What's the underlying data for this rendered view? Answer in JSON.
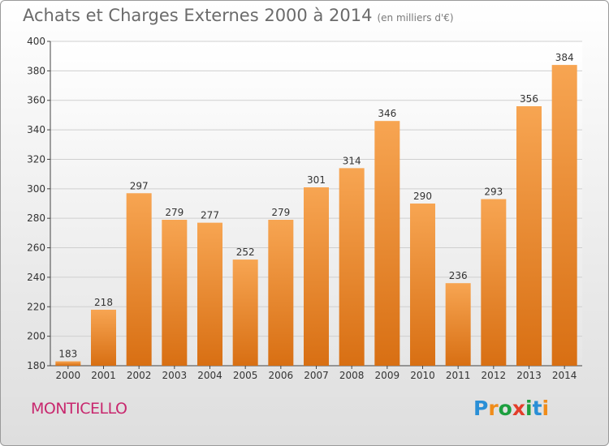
{
  "title": "Achats et Charges Externes 2000 à 2014",
  "unit": "(en milliers d'€)",
  "commune": "MONTICELLO",
  "logo": {
    "letters": [
      "P",
      "r",
      "o",
      "x",
      "i",
      "t",
      "i"
    ],
    "colors": [
      "#2a8fd6",
      "#f08c1a",
      "#1d9f3f",
      "#e33d2a",
      "#1d9f3f",
      "#2a8fd6",
      "#f08c1a"
    ]
  },
  "chart_data": {
    "type": "bar",
    "title": "Achats et Charges Externes 2000 à 2014",
    "subtitle": "(en milliers d'€)",
    "categories": [
      "2000",
      "2001",
      "2002",
      "2003",
      "2004",
      "2005",
      "2006",
      "2007",
      "2008",
      "2009",
      "2010",
      "2011",
      "2012",
      "2013",
      "2014"
    ],
    "values": [
      183,
      218,
      297,
      279,
      277,
      252,
      279,
      301,
      314,
      346,
      290,
      236,
      293,
      356,
      384
    ],
    "ylim": [
      180,
      400
    ],
    "yticks": [
      180,
      200,
      220,
      240,
      260,
      280,
      300,
      320,
      340,
      360,
      380,
      400
    ],
    "xlabel": "",
    "ylabel": "",
    "grid": true,
    "colors": {
      "bar_top": "#f7a552",
      "bar_bottom": "#d86f13",
      "grid": "#cfcfcf",
      "axis": "#444444",
      "label": "#333333"
    }
  }
}
